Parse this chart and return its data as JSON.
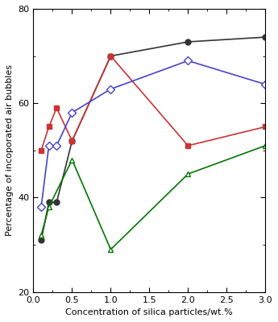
{
  "xlabel": "Concentration of silica particles/wt.%",
  "ylabel": "Percentage of incoporated air bubbles",
  "xlim": [
    0,
    3
  ],
  "ylim": [
    20,
    80
  ],
  "xticks": [
    0,
    0.5,
    1.0,
    1.5,
    2.0,
    2.5,
    3.0
  ],
  "yticks": [
    20,
    40,
    60,
    80
  ],
  "series": [
    {
      "x": [
        0.1,
        0.2,
        0.3,
        0.5,
        1.0,
        2.0,
        3.0
      ],
      "y": [
        31,
        39,
        39,
        52,
        70,
        73,
        74
      ],
      "color": "#333333",
      "marker": "o",
      "marker_filled": true,
      "markersize": 5,
      "linewidth": 1.2
    },
    {
      "x": [
        0.1,
        0.2,
        0.3,
        0.5,
        1.0,
        2.0,
        3.0
      ],
      "y": [
        50,
        55,
        59,
        52,
        70,
        51,
        55
      ],
      "color": "#cc3333",
      "marker": "s",
      "marker_filled": true,
      "markersize": 5,
      "linewidth": 1.2
    },
    {
      "x": [
        0.1,
        0.2,
        0.3,
        0.5,
        1.0,
        2.0,
        3.0
      ],
      "y": [
        38,
        51,
        51,
        58,
        63,
        69,
        64
      ],
      "color": "#4444cc",
      "marker": "D",
      "marker_filled": false,
      "markersize": 5,
      "linewidth": 1.2
    },
    {
      "x": [
        0.1,
        0.2,
        0.5,
        1.0,
        2.0,
        3.0
      ],
      "y": [
        32,
        38,
        48,
        29,
        45,
        51
      ],
      "color": "#007700",
      "marker": "^",
      "marker_filled": false,
      "markersize": 5,
      "linewidth": 1.2
    }
  ]
}
